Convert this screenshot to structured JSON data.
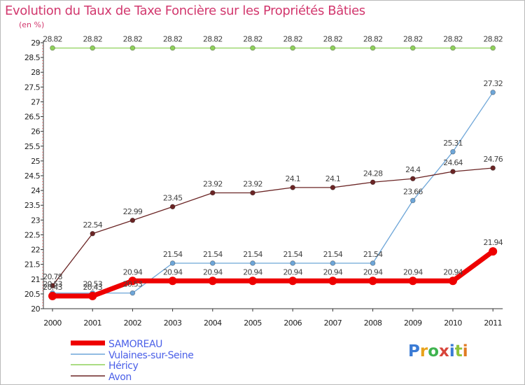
{
  "title": "Evolution du Taux de Taxe Foncière sur les Propriétés Bâties",
  "unit": "(en %)",
  "logo": "Proxiti",
  "colors": {
    "SAMOREAU": "#ee0000",
    "Vulaines-sur-Seine": "#6ea6d8",
    "Héricy": "#8fd15a",
    "Avon": "#6b2525",
    "title": "#d2386e",
    "legend_text": "#4b60e8"
  },
  "chart_data": {
    "type": "line",
    "title": "Evolution du Taux de Taxe Foncière sur les Propriétés Bâties",
    "ylabel": "(en %)",
    "xlabel": "",
    "x": [
      "2000",
      "2001",
      "2002",
      "2003",
      "2004",
      "2005",
      "2006",
      "2007",
      "2008",
      "2009",
      "2010",
      "2011"
    ],
    "ylim": [
      20,
      29
    ],
    "yticks": [
      20,
      20.5,
      21,
      21.5,
      22,
      22.5,
      23,
      23.5,
      24,
      24.5,
      25,
      25.5,
      26,
      26.5,
      27,
      27.5,
      28,
      28.5,
      29
    ],
    "grid": false,
    "legend_position": "bottom-left",
    "series": [
      {
        "name": "SAMOREAU",
        "values": [
          20.43,
          20.43,
          20.94,
          20.94,
          20.94,
          20.94,
          20.94,
          20.94,
          20.94,
          20.94,
          20.94,
          21.94
        ],
        "labels": [
          "20.43",
          "20.43",
          "20.94",
          "20.94",
          "20.94",
          "20.94",
          "20.94",
          "20.94",
          "20.94",
          "20.94",
          "20.94",
          "21.94"
        ]
      },
      {
        "name": "Vulaines-sur-Seine",
        "values": [
          20.53,
          20.53,
          20.53,
          21.54,
          21.54,
          21.54,
          21.54,
          21.54,
          21.54,
          23.66,
          25.31,
          27.32
        ],
        "labels": [
          "20.53",
          "20.53",
          "20.53",
          "21.54",
          "21.54",
          "21.54",
          "21.54",
          "21.54",
          "21.54",
          "23.66",
          "25.31",
          "27.32"
        ]
      },
      {
        "name": "Héricy",
        "values": [
          28.82,
          28.82,
          28.82,
          28.82,
          28.82,
          28.82,
          28.82,
          28.82,
          28.82,
          28.82,
          28.82,
          28.82
        ],
        "labels": [
          "28.82",
          "28.82",
          "28.82",
          "28.82",
          "28.82",
          "28.82",
          "28.82",
          "28.82",
          "28.82",
          "28.82",
          "28.82",
          "28.82"
        ]
      },
      {
        "name": "Avon",
        "values": [
          20.78,
          22.54,
          22.99,
          23.45,
          23.92,
          23.92,
          24.1,
          24.1,
          24.28,
          24.4,
          24.64,
          24.76
        ],
        "labels": [
          "20.78",
          "22.54",
          "22.99",
          "23.45",
          "23.92",
          "23.92",
          "24.1",
          "24.1",
          "24.28",
          "24.4",
          "24.64",
          "24.76"
        ]
      }
    ]
  }
}
